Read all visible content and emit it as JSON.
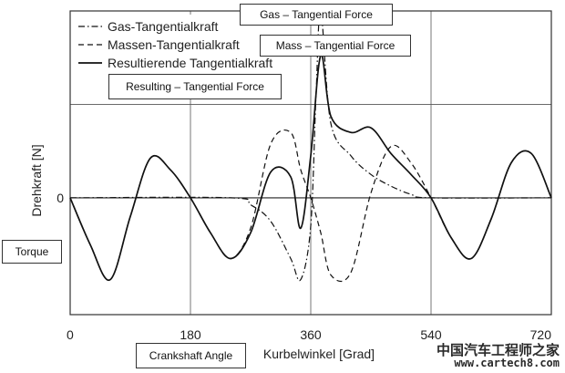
{
  "chart_data": {
    "type": "line",
    "xlabel": "Kurbelwinkel  [Grad]",
    "ylabel": "Drehkraft  [N]",
    "x_ticks": [
      "0",
      "180",
      "360",
      "540",
      "720"
    ],
    "y_ticks": [
      "0"
    ],
    "xlim": [
      0,
      720
    ],
    "ylim": [
      -5,
      8
    ],
    "grid": true,
    "legend_position": "top-left",
    "series": [
      {
        "name": "Gas-Tangentialkraft",
        "style": "dash-dot",
        "x": [
          0,
          240,
          270,
          300,
          330,
          345,
          360,
          368,
          375,
          390,
          420,
          450,
          480,
          510,
          540,
          720
        ],
        "y": [
          0,
          0,
          -0.3,
          -1.0,
          -2.6,
          -3.5,
          -1.2,
          4.5,
          8.0,
          3.2,
          1.8,
          1.0,
          0.5,
          0.15,
          0,
          0
        ]
      },
      {
        "name": "Massen-Tangentialkraft",
        "style": "dashed",
        "x": [
          0,
          30,
          60,
          90,
          120,
          150,
          180,
          210,
          240,
          270,
          300,
          330,
          345,
          360,
          375,
          390,
          420,
          450,
          480,
          510,
          540,
          570,
          600,
          630,
          660,
          690,
          720
        ],
        "y": [
          0,
          -2.0,
          -3.5,
          -0.8,
          1.7,
          1.2,
          0,
          -1.5,
          -2.6,
          -1.3,
          2.3,
          2.8,
          1.2,
          0,
          -1.5,
          -3.3,
          -3.2,
          0.2,
          2.2,
          1.5,
          0,
          -1.7,
          -2.6,
          -0.9,
          1.5,
          1.9,
          0
        ]
      },
      {
        "name": "Resultierende Tangentialkraft",
        "style": "solid",
        "x": [
          0,
          30,
          60,
          90,
          120,
          150,
          180,
          210,
          240,
          270,
          300,
          330,
          345,
          360,
          375,
          390,
          420,
          450,
          480,
          510,
          540,
          570,
          600,
          630,
          660,
          690,
          720
        ],
        "y": [
          0,
          -2.0,
          -3.5,
          -0.8,
          1.7,
          1.2,
          0,
          -1.5,
          -2.6,
          -1.5,
          1.1,
          0.9,
          -1.3,
          1.8,
          6.1,
          3.5,
          2.8,
          3.0,
          1.9,
          1.0,
          0,
          -1.7,
          -2.6,
          -0.9,
          1.5,
          1.9,
          0
        ]
      }
    ]
  },
  "callouts": {
    "gas": "Gas – Tangential Force",
    "mass": "Mass – Tangential Force",
    "resulting": "Resulting – Tangential Force",
    "torque": "Torque",
    "crank": "Crankshaft Angle"
  },
  "watermark": {
    "text": "中国汽车工程师之家",
    "url": "www.cartech8.com"
  }
}
